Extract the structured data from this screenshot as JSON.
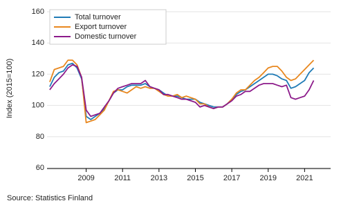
{
  "chart_data": {
    "type": "line",
    "y_label": "Index (2015=100)",
    "source": "Source: Statistics Finland",
    "legend": "upper left",
    "grid": true,
    "xlim": [
      2006.85,
      2022.43
    ],
    "ylim": [
      59.6,
      162.2
    ],
    "xticks": [
      2009,
      2011,
      2013,
      2015,
      2017,
      2019,
      2021
    ],
    "yticks": [
      60,
      80,
      100,
      120,
      140,
      160
    ],
    "x": [
      2007,
      2007.25,
      2007.5,
      2007.75,
      2008,
      2008.25,
      2008.5,
      2008.75,
      2009,
      2009.25,
      2009.5,
      2009.75,
      2010,
      2010.25,
      2010.5,
      2010.75,
      2011,
      2011.25,
      2011.5,
      2011.75,
      2012,
      2012.25,
      2012.5,
      2012.75,
      2013,
      2013.25,
      2013.5,
      2013.75,
      2014,
      2014.25,
      2014.5,
      2014.75,
      2015,
      2015.25,
      2015.5,
      2015.75,
      2016,
      2016.25,
      2016.5,
      2016.75,
      2017,
      2017.25,
      2017.5,
      2017.75,
      2018,
      2018.25,
      2018.5,
      2018.75,
      2019,
      2019.25,
      2019.5,
      2019.75,
      2020,
      2020.25,
      2020.5,
      2020.75,
      2021,
      2021.25,
      2021.5
    ],
    "series": [
      {
        "name": "Total turnover",
        "color": "#1f7bb6",
        "values": [
          112,
          118,
          121,
          122,
          126,
          127,
          124,
          117,
          93,
          91,
          93,
          95,
          98,
          103,
          108,
          110,
          110,
          112,
          113,
          113,
          113,
          114,
          112,
          111,
          110,
          108,
          106,
          106,
          106,
          105,
          104,
          104,
          104,
          102,
          101,
          100,
          99,
          99,
          99,
          101,
          104,
          107,
          109,
          110,
          112,
          114,
          116,
          118,
          120,
          120,
          119,
          117,
          116,
          111,
          112,
          114,
          116,
          121,
          124
        ]
      },
      {
        "name": "Export turnover",
        "color": "#e8871e",
        "values": [
          115,
          123,
          124,
          125,
          129,
          129,
          126,
          118,
          89,
          90,
          91,
          94,
          97,
          103,
          109,
          110,
          109,
          108,
          110,
          112,
          111,
          112,
          111,
          111,
          109,
          107,
          106,
          106,
          107,
          105,
          106,
          105,
          104,
          101,
          101,
          99,
          98,
          99,
          99,
          101,
          104,
          108,
          110,
          110,
          113,
          116,
          118,
          121,
          124,
          125,
          125,
          122,
          118,
          116,
          117,
          120,
          123,
          126,
          129
        ]
      },
      {
        "name": "Domestic turnover",
        "color": "#8c1a8a",
        "values": [
          110,
          114,
          117,
          120,
          124,
          126,
          125,
          118,
          97,
          93,
          94,
          95,
          99,
          103,
          108,
          111,
          112,
          113,
          114,
          114,
          114,
          116,
          112,
          111,
          110,
          107,
          107,
          106,
          105,
          104,
          104,
          103,
          102,
          99,
          100,
          99,
          98,
          99,
          99,
          101,
          103,
          106,
          107,
          109,
          109,
          111,
          113,
          114,
          114,
          114,
          113,
          112,
          113,
          105,
          104,
          105,
          106,
          110,
          116
        ]
      }
    ]
  }
}
